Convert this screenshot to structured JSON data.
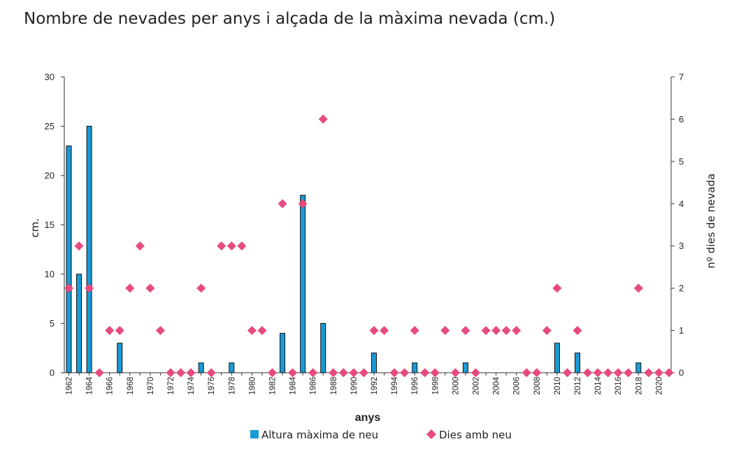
{
  "chart_data": {
    "type": "bar+scatter",
    "title": "Nombre de nevades per anys i alçada de la màxima nevada (cm.)",
    "xlabel": "anys",
    "ylabel_left": "cm.",
    "ylabel_right": "nº dies de nevada",
    "ylim_left": [
      0,
      30
    ],
    "ylim_right": [
      0,
      7
    ],
    "yticks_left": [
      0,
      5,
      10,
      15,
      20,
      25,
      30
    ],
    "yticks_right": [
      0,
      1,
      2,
      3,
      4,
      5,
      6,
      7
    ],
    "x_tick_labels": [
      "1962",
      "1964",
      "1966",
      "1968",
      "1970",
      "1972",
      "1974",
      "1976",
      "1978",
      "1980",
      "1982",
      "1984",
      "1986",
      "1988",
      "1990",
      "1992",
      "1994",
      "1996",
      "1998",
      "2000",
      "2002",
      "2004",
      "2006",
      "2008",
      "2010",
      "2012",
      "2014",
      "2016",
      "2018",
      "2020"
    ],
    "years": [
      1962,
      1963,
      1964,
      1965,
      1966,
      1967,
      1968,
      1969,
      1970,
      1971,
      1972,
      1973,
      1974,
      1975,
      1976,
      1977,
      1978,
      1979,
      1980,
      1981,
      1982,
      1983,
      1984,
      1985,
      1986,
      1987,
      1988,
      1989,
      1990,
      1991,
      1992,
      1993,
      1994,
      1995,
      1996,
      1997,
      1998,
      1999,
      2000,
      2001,
      2002,
      2003,
      2004,
      2005,
      2006,
      2007,
      2008,
      2009,
      2010,
      2011,
      2012,
      2013,
      2014,
      2015,
      2016,
      2017,
      2018,
      2019,
      2020,
      2021
    ],
    "series": [
      {
        "name": "Altura màxima de neu",
        "kind": "bar",
        "axis": "left",
        "color": "#1a9ad6",
        "values": [
          23,
          10,
          25,
          0,
          0,
          3,
          0,
          0,
          0,
          0,
          0,
          0,
          0,
          1,
          0,
          0,
          1,
          0,
          0,
          0,
          0,
          4,
          0,
          18,
          0,
          5,
          0,
          0,
          0,
          0,
          2,
          0,
          0,
          0,
          1,
          0,
          0,
          0,
          0,
          1,
          0,
          0,
          0,
          0,
          0,
          0,
          0,
          0,
          3,
          0,
          2,
          0,
          0,
          0,
          0,
          0,
          1,
          0,
          0,
          0
        ]
      },
      {
        "name": "Dies amb neu",
        "kind": "scatter",
        "axis": "right",
        "color": "#e84a7f",
        "values": [
          2,
          3,
          2,
          0,
          1,
          1,
          2,
          3,
          2,
          1,
          0,
          0,
          0,
          2,
          0,
          3,
          3,
          3,
          1,
          1,
          0,
          4,
          0,
          4,
          0,
          6,
          0,
          0,
          0,
          0,
          1,
          1,
          0,
          0,
          1,
          0,
          0,
          1,
          0,
          1,
          0,
          1,
          1,
          1,
          1,
          0,
          0,
          1,
          2,
          0,
          1,
          0,
          0,
          0,
          0,
          0,
          2,
          0,
          0,
          0
        ]
      }
    ],
    "legend_position": "bottom",
    "grid": false
  }
}
